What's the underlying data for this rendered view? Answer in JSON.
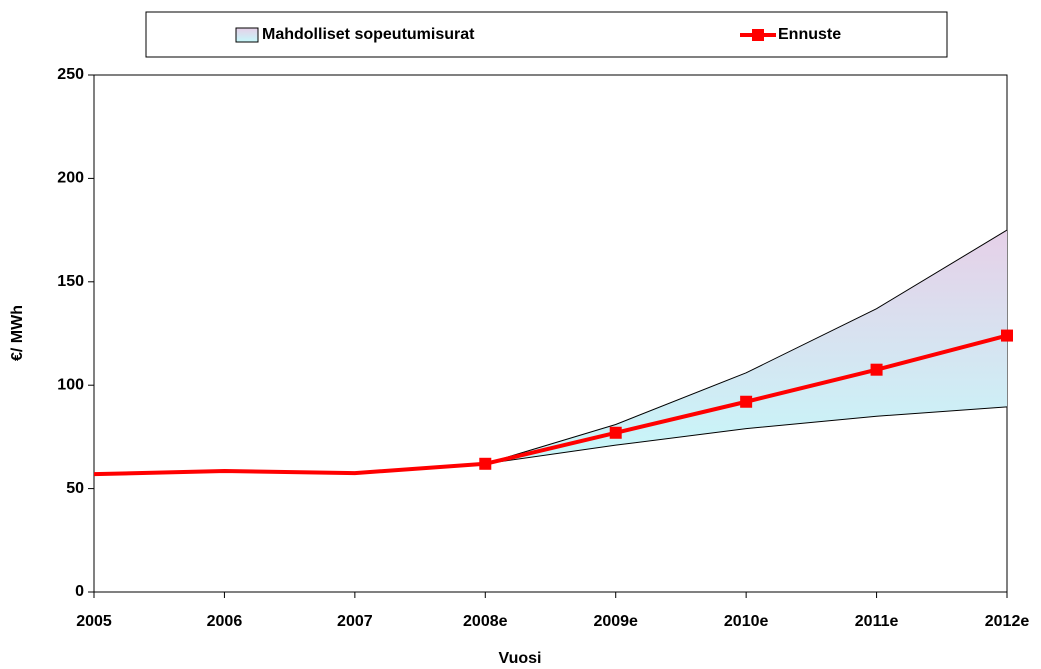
{
  "chart_data": {
    "type": "line",
    "categories": [
      "2005",
      "2006",
      "2007",
      "2008e",
      "2009e",
      "2010e",
      "2011e",
      "2012e"
    ],
    "xlabel": "Vuosi",
    "ylabel": "€/ MWh",
    "ylim": [
      0,
      250
    ],
    "yticks": [
      0,
      50,
      100,
      150,
      200,
      250
    ],
    "series": [
      {
        "name": "Mahdolliset sopeutumisurat",
        "type": "band",
        "gradient": [
          "#e6d0e8",
          "#c6f8fa"
        ],
        "high": [
          null,
          null,
          null,
          62,
          81,
          106,
          137,
          175
        ],
        "low": [
          null,
          null,
          null,
          62,
          71,
          79,
          85,
          89.5
        ]
      },
      {
        "color": "#ff0000",
        "marker": false,
        "values": [
          57,
          58.5,
          57.5,
          62,
          null,
          null,
          null,
          null
        ]
      },
      {
        "name": "Ennuste",
        "color": "#ff0000",
        "marker": "square",
        "values": [
          null,
          null,
          null,
          62,
          77,
          92,
          107.5,
          124
        ]
      }
    ]
  }
}
